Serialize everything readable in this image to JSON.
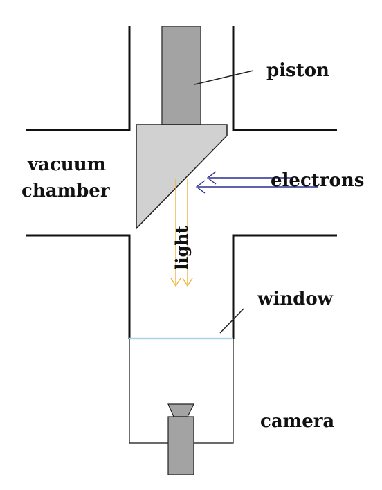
{
  "labels": {
    "piston": "piston",
    "vacuum": "vacuum",
    "chamber": "chamber",
    "electrons": "electrons",
    "light": "light",
    "window": "window",
    "camera": "camera"
  },
  "colors": {
    "wall": "#111111",
    "piston": "#a3a3a3",
    "prism": "#d1d1d1",
    "camera_body": "#a3a3a3",
    "electron_arrow": "#2b2f8f",
    "light_arrow": "#f2b233",
    "window_glass": "#a9d3e8",
    "leader_line": "#222222"
  }
}
